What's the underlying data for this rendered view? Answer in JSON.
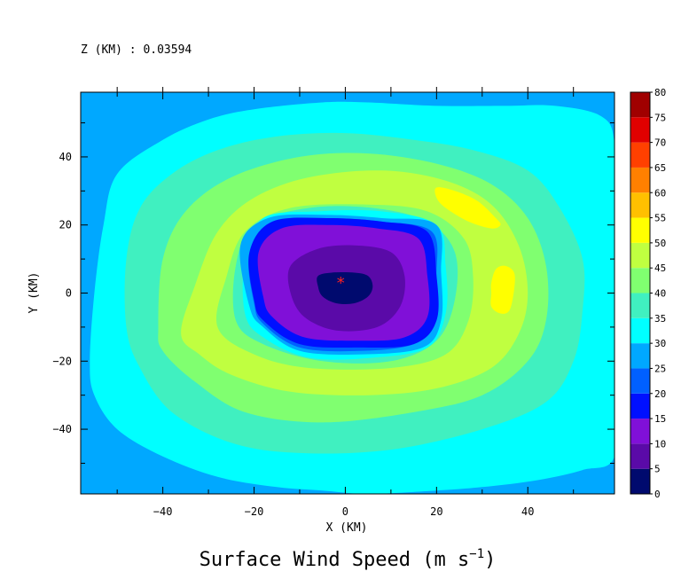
{
  "chart_data": {
    "type": "heatmap",
    "title": "Surface Wind Speed (m s",
    "title_superscript": "−1",
    "title_close": ")",
    "subtitle": "Z (KM) : 0.03594",
    "xlabel": "X (KM)",
    "ylabel": "Y (KM)",
    "xlim": [
      -58,
      59
    ],
    "ylim": [
      -59,
      59
    ],
    "xticks": [
      -40,
      -20,
      0,
      20,
      40
    ],
    "yticks": [
      -40,
      -20,
      0,
      20,
      40
    ],
    "tick_labels": {
      "x": [
        "−40",
        "−20",
        "0",
        "20",
        "40"
      ],
      "y": [
        "−40",
        "−20",
        "0",
        "20",
        "40"
      ]
    },
    "center_marker": {
      "x": -1,
      "y": 3,
      "symbol": "*",
      "color": "#ff2020"
    },
    "colorbar": {
      "levels": [
        0,
        5,
        10,
        15,
        20,
        25,
        30,
        35,
        40,
        45,
        50,
        55,
        60,
        65,
        70,
        75,
        80
      ],
      "labels": [
        "0",
        "5",
        "10",
        "15",
        "20",
        "25",
        "30",
        "35",
        "40",
        "45",
        "50",
        "55",
        "60",
        "65",
        "70",
        "75",
        "80"
      ],
      "colors": [
        "#000a6e",
        "#5a0aa8",
        "#8010d8",
        "#0010ff",
        "#0060ff",
        "#00a8ff",
        "#00ffff",
        "#40f0c0",
        "#80ff70",
        "#c0ff40",
        "#ffff00",
        "#ffc000",
        "#ff8000",
        "#ff4000",
        "#e00000",
        "#a00000"
      ]
    },
    "contours": [
      {
        "level": 30,
        "color": "#00ffff",
        "points": [
          [
            -56,
            -20
          ],
          [
            -55,
            0
          ],
          [
            -53,
            20
          ],
          [
            -50,
            35
          ],
          [
            -40,
            45
          ],
          [
            -30,
            51
          ],
          [
            -20,
            54
          ],
          [
            -5,
            56
          ],
          [
            5,
            56
          ],
          [
            20,
            55
          ],
          [
            35,
            55
          ],
          [
            46,
            55
          ],
          [
            56,
            52
          ],
          [
            59,
            44
          ],
          [
            59,
            20
          ],
          [
            59,
            0
          ],
          [
            59,
            -25
          ],
          [
            59,
            -48
          ],
          [
            52,
            -52
          ],
          [
            42,
            -55
          ],
          [
            30,
            -57
          ],
          [
            20,
            -58
          ],
          [
            5,
            -59
          ],
          [
            -5,
            -58
          ],
          [
            -15,
            -57
          ],
          [
            -28,
            -54
          ],
          [
            -40,
            -48
          ],
          [
            -50,
            -40
          ],
          [
            -55,
            -30
          ]
        ]
      },
      {
        "level": 35,
        "color": "#40f0c0",
        "points": [
          [
            -48,
            -10
          ],
          [
            -48,
            10
          ],
          [
            -45,
            25
          ],
          [
            -38,
            35
          ],
          [
            -28,
            42
          ],
          [
            -15,
            46
          ],
          [
            0,
            47
          ],
          [
            15,
            45
          ],
          [
            28,
            42
          ],
          [
            40,
            36
          ],
          [
            47,
            25
          ],
          [
            52,
            10
          ],
          [
            52,
            -5
          ],
          [
            50,
            -20
          ],
          [
            44,
            -32
          ],
          [
            30,
            -40
          ],
          [
            10,
            -46
          ],
          [
            -10,
            -47
          ],
          [
            -25,
            -44
          ],
          [
            -38,
            -35
          ],
          [
            -45,
            -22
          ]
        ]
      },
      {
        "level": 40,
        "color": "#80ff70",
        "points": [
          [
            -41,
            -10
          ],
          [
            -40,
            10
          ],
          [
            -35,
            24
          ],
          [
            -25,
            34
          ],
          [
            -10,
            40
          ],
          [
            5,
            41
          ],
          [
            20,
            38
          ],
          [
            32,
            32
          ],
          [
            40,
            22
          ],
          [
            44,
            8
          ],
          [
            44,
            -8
          ],
          [
            40,
            -20
          ],
          [
            30,
            -30
          ],
          [
            15,
            -35
          ],
          [
            -5,
            -38
          ],
          [
            -22,
            -35
          ],
          [
            -33,
            -26
          ],
          [
            -40,
            -17
          ]
        ]
      },
      {
        "level": 45,
        "color": "#c0ff40",
        "points": [
          [
            -36,
            -12
          ],
          [
            -33,
            2
          ],
          [
            -28,
            18
          ],
          [
            -20,
            28
          ],
          [
            -8,
            34
          ],
          [
            8,
            36
          ],
          [
            22,
            33
          ],
          [
            32,
            26
          ],
          [
            38,
            14
          ],
          [
            40,
            0
          ],
          [
            38,
            -12
          ],
          [
            32,
            -22
          ],
          [
            20,
            -28
          ],
          [
            5,
            -30
          ],
          [
            -12,
            -29
          ],
          [
            -25,
            -24
          ],
          [
            -32,
            -18
          ]
        ]
      },
      {
        "level": 40,
        "color": "#80ff70",
        "points": [
          [
            -28,
            -10
          ],
          [
            -26,
            5
          ],
          [
            -22,
            18
          ],
          [
            -12,
            25
          ],
          [
            5,
            26
          ],
          [
            18,
            24
          ],
          [
            26,
            16
          ],
          [
            28,
            5
          ],
          [
            27,
            -8
          ],
          [
            22,
            -18
          ],
          [
            10,
            -22
          ],
          [
            -8,
            -22
          ],
          [
            -20,
            -18
          ]
        ]
      },
      {
        "level": 35,
        "color": "#40f0c0",
        "points": [
          [
            -24,
            -8
          ],
          [
            -24,
            8
          ],
          [
            -20,
            20
          ],
          [
            -8,
            25
          ],
          [
            6,
            25
          ],
          [
            18,
            21
          ],
          [
            24,
            12
          ],
          [
            24,
            -2
          ],
          [
            20,
            -14
          ],
          [
            10,
            -20
          ],
          [
            -5,
            -20
          ],
          [
            -18,
            -15
          ]
        ]
      },
      {
        "level": 30,
        "color": "#00ffff",
        "points": [
          [
            -22,
            -6
          ],
          [
            -22,
            10
          ],
          [
            -18,
            22
          ],
          [
            -6,
            24
          ],
          [
            8,
            24
          ],
          [
            20,
            20
          ],
          [
            22,
            8
          ],
          [
            22,
            -6
          ],
          [
            18,
            -16
          ],
          [
            6,
            -19
          ],
          [
            -8,
            -19
          ],
          [
            -18,
            -13
          ]
        ]
      },
      {
        "level": 25,
        "color": "#00a8ff",
        "points": [
          [
            -21,
            -4
          ],
          [
            -23,
            14
          ],
          [
            -17,
            22
          ],
          [
            -5,
            23
          ],
          [
            8,
            22
          ],
          [
            20,
            20
          ],
          [
            21,
            6
          ],
          [
            21,
            -8
          ],
          [
            17,
            -16
          ],
          [
            4,
            -18
          ],
          [
            -10,
            -17
          ],
          [
            -18,
            -10
          ]
        ]
      },
      {
        "level": 20,
        "color": "#0060ff",
        "points": [
          [
            -20,
            -3
          ],
          [
            -21,
            12
          ],
          [
            -15,
            21
          ],
          [
            -4,
            22
          ],
          [
            8,
            21
          ],
          [
            19,
            18
          ],
          [
            20,
            5
          ],
          [
            20,
            -8
          ],
          [
            15,
            -15
          ],
          [
            3,
            -17
          ],
          [
            -10,
            -16
          ],
          [
            -18,
            -9
          ]
        ]
      },
      {
        "level": 15,
        "color": "#0010ff",
        "points": [
          [
            -20,
            -2
          ],
          [
            -21,
            12
          ],
          [
            -16,
            21
          ],
          [
            -4,
            22
          ],
          [
            8,
            21
          ],
          [
            18,
            18
          ],
          [
            20,
            5
          ],
          [
            20,
            -8
          ],
          [
            15,
            -15
          ],
          [
            3,
            -16
          ],
          [
            -10,
            -15
          ],
          [
            -18,
            -8
          ]
        ]
      },
      {
        "level": 10,
        "color": "#8010d8",
        "points": [
          [
            -18,
            -1
          ],
          [
            -19,
            12
          ],
          [
            -14,
            19
          ],
          [
            -4,
            20
          ],
          [
            7,
            19
          ],
          [
            16,
            16
          ],
          [
            18,
            5
          ],
          [
            18,
            -7
          ],
          [
            13,
            -13
          ],
          [
            3,
            -14
          ],
          [
            -9,
            -13
          ],
          [
            -16,
            -7
          ]
        ]
      },
      {
        "level": 5,
        "color": "#5a0aa8",
        "points": [
          [
            -12,
            0
          ],
          [
            -12,
            8
          ],
          [
            -6,
            13
          ],
          [
            2,
            14
          ],
          [
            10,
            12
          ],
          [
            13,
            5
          ],
          [
            12,
            -4
          ],
          [
            7,
            -10
          ],
          [
            -2,
            -11
          ],
          [
            -9,
            -7
          ]
        ]
      },
      {
        "level": 0,
        "color": "#000a6e",
        "points": [
          [
            -6,
            2
          ],
          [
            -6,
            5
          ],
          [
            -3,
            6
          ],
          [
            2,
            6
          ],
          [
            5,
            5
          ],
          [
            6,
            2
          ],
          [
            5,
            -1
          ],
          [
            2,
            -3
          ],
          [
            -2,
            -3
          ],
          [
            -5,
            -1
          ]
        ]
      },
      {
        "level": 50,
        "color": "#ffff00",
        "points": [
          [
            20,
            31
          ],
          [
            24,
            30
          ],
          [
            29,
            27
          ],
          [
            33,
            22
          ],
          [
            34,
            20
          ],
          [
            32,
            19
          ],
          [
            27,
            21
          ],
          [
            22,
            25
          ],
          [
            20,
            28
          ]
        ]
      },
      {
        "level": 50,
        "color": "#ffff00",
        "points": [
          [
            32,
            3
          ],
          [
            33,
            7
          ],
          [
            35,
            8
          ],
          [
            37,
            6
          ],
          [
            37,
            1
          ],
          [
            36,
            -5
          ],
          [
            34,
            -6
          ],
          [
            32,
            -4
          ],
          [
            32,
            0
          ]
        ]
      }
    ]
  }
}
